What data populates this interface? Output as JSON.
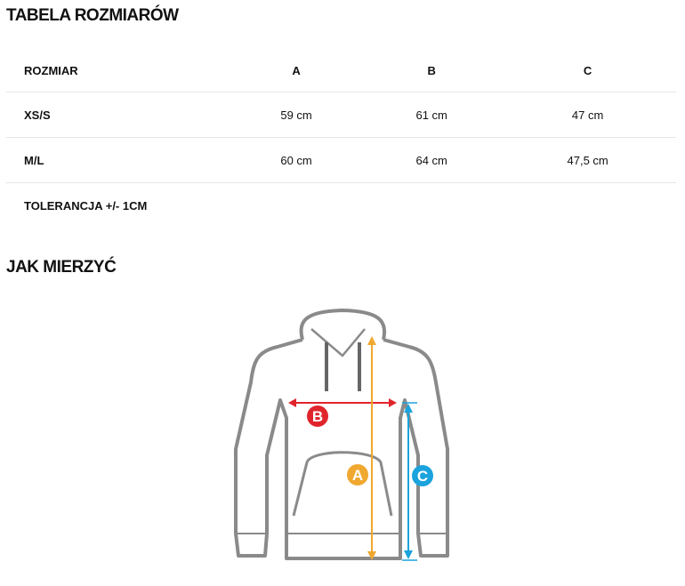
{
  "title": "TABELA ROZMIARÓW",
  "table": {
    "headers": [
      "ROZMIAR",
      "A",
      "B",
      "C"
    ],
    "rows": [
      [
        "XS/S",
        "59 cm",
        "61 cm",
        "47 cm"
      ],
      [
        "M/L",
        "60 cm",
        "64 cm",
        "47,5 cm"
      ]
    ],
    "tolerance": "TOLERANCJA +/- 1CM"
  },
  "how_to_measure": {
    "title": "JAK MIERZYĆ",
    "labels": {
      "a": "A",
      "b": "B",
      "c": "C"
    },
    "colors": {
      "a": "#f0a830",
      "b": "#e0242c",
      "c": "#1aa3dc",
      "outline": "#8a8a8a"
    }
  }
}
